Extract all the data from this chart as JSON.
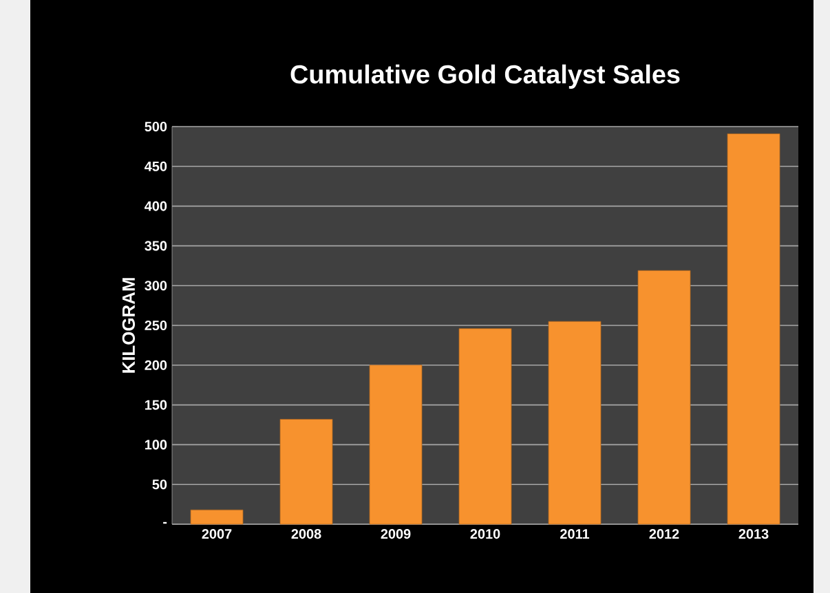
{
  "chart_data": {
    "type": "bar",
    "title": "Cumulative Gold Catalyst Sales",
    "ylabel": "KILOGRAM",
    "categories": [
      "2007",
      "2008",
      "2009",
      "2010",
      "2011",
      "2012",
      "2013"
    ],
    "values": [
      18,
      132,
      200,
      246,
      255,
      319,
      491
    ],
    "color": "#f7922e",
    "ylim": [
      0,
      500
    ],
    "yticks": [
      {
        "value": 0,
        "label": "-"
      },
      50,
      100,
      150,
      200,
      250,
      300,
      350,
      400,
      450,
      500
    ],
    "grid": "y"
  }
}
